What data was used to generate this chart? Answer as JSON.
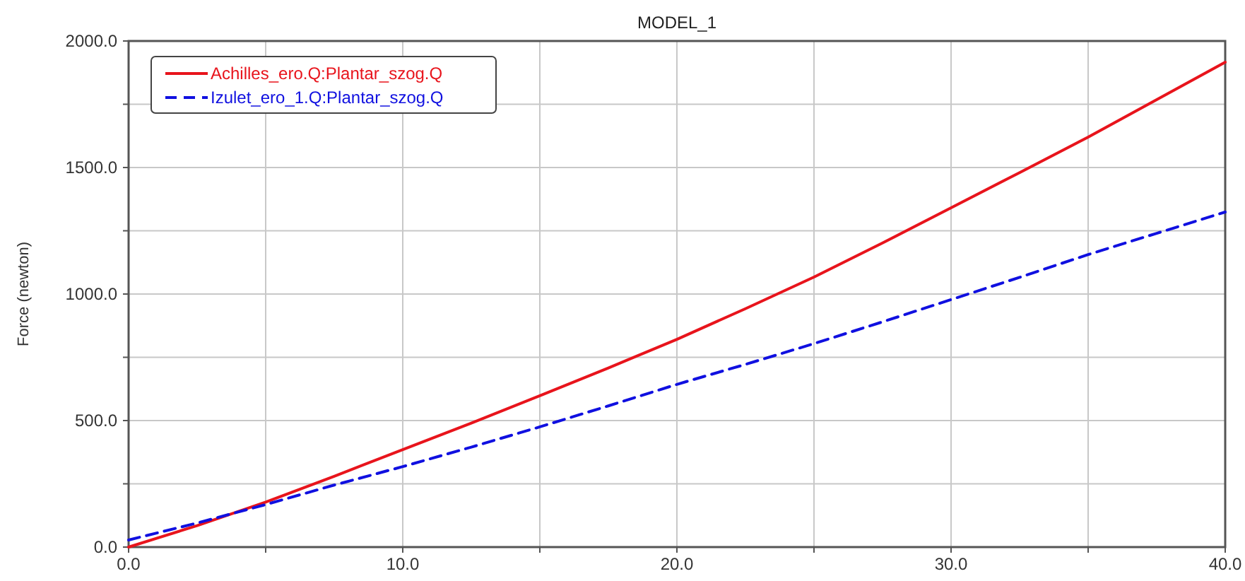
{
  "chart_data": {
    "type": "line",
    "title": "MODEL_1",
    "ylabel": "Force (newton)",
    "x": [
      0,
      2.5,
      5,
      7.5,
      10,
      12.5,
      15,
      17.5,
      20,
      22.5,
      25,
      27.5,
      30,
      32.5,
      35,
      37.5,
      40
    ],
    "series": [
      {
        "name": "Achilles_ero.Q:Plantar_szog.Q",
        "color": "#e8141c",
        "line_style": "solid",
        "values": [
          0,
          85,
          178,
          280,
          385,
          490,
          598,
          708,
          821,
          942,
          1067,
          1202,
          1341,
          1480,
          1620,
          1768,
          1916
        ]
      },
      {
        "name": "Izulet_ero_1.Q:Plantar_szog.Q",
        "color": "#1010e0",
        "line_style": "dashed",
        "values": [
          28,
          95,
          168,
          245,
          318,
          395,
          475,
          558,
          643,
          722,
          804,
          890,
          978,
          1066,
          1156,
          1240,
          1324
        ]
      }
    ],
    "xlim": [
      0,
      40
    ],
    "xticks": [
      {
        "value": 0,
        "label": "0.0"
      },
      {
        "value": 5,
        "label": null
      },
      {
        "value": 10,
        "label": "10.0"
      },
      {
        "value": 15,
        "label": null
      },
      {
        "value": 20,
        "label": "20.0"
      },
      {
        "value": 25,
        "label": null
      },
      {
        "value": 30,
        "label": "30.0"
      },
      {
        "value": 35,
        "label": null
      },
      {
        "value": 40,
        "label": "40.0"
      }
    ],
    "ylim": [
      0,
      2000
    ],
    "yticks": [
      {
        "value": 0,
        "label": "0.0"
      },
      {
        "value": 250,
        "label": null
      },
      {
        "value": 500,
        "label": "500.0"
      },
      {
        "value": 750,
        "label": null
      },
      {
        "value": 1000,
        "label": "1000.0"
      },
      {
        "value": 1250,
        "label": null
      },
      {
        "value": 1500,
        "label": "1500.0"
      },
      {
        "value": 1750,
        "label": null
      },
      {
        "value": 2000,
        "label": "2000.0"
      }
    ],
    "grid": true,
    "legend": "top left",
    "marker": "none"
  }
}
